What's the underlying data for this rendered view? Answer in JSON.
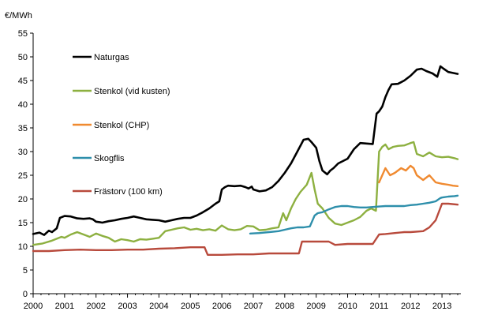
{
  "chart_data": {
    "type": "line",
    "ylabel": "€/MWh",
    "xlim": [
      2000,
      2013.6
    ],
    "ylim": [
      0,
      55
    ],
    "y_ticks": [
      0,
      5,
      10,
      15,
      20,
      25,
      30,
      35,
      40,
      45,
      50,
      55
    ],
    "x_ticks": [
      2000,
      2001,
      2002,
      2003,
      2004,
      2005,
      2006,
      2007,
      2008,
      2009,
      2010,
      2011,
      2012,
      2013
    ],
    "grid": false,
    "legend_position": "top-left",
    "series": [
      {
        "name": "Naturgas",
        "color": "#000000",
        "x": [
          2000.0,
          2000.2,
          2000.35,
          2000.5,
          2000.6,
          2000.75,
          2000.85,
          2001.0,
          2001.2,
          2001.4,
          2001.6,
          2001.8,
          2001.9,
          2002.0,
          2002.2,
          2002.4,
          2002.6,
          2002.8,
          2003.0,
          2003.2,
          2003.4,
          2003.6,
          2003.8,
          2004.0,
          2004.2,
          2004.4,
          2004.6,
          2004.8,
          2005.0,
          2005.2,
          2005.4,
          2005.6,
          2005.8,
          2005.92,
          2006.0,
          2006.1,
          2006.2,
          2006.4,
          2006.6,
          2006.75,
          2006.85,
          2006.95,
          2007.0,
          2007.2,
          2007.4,
          2007.6,
          2007.8,
          2008.0,
          2008.2,
          2008.4,
          2008.6,
          2008.75,
          2008.85,
          2009.0,
          2009.1,
          2009.2,
          2009.35,
          2009.45,
          2009.55,
          2009.7,
          2009.85,
          2010.0,
          2010.2,
          2010.4,
          2010.6,
          2010.8,
          2010.92,
          2011.0,
          2011.1,
          2011.2,
          2011.3,
          2011.4,
          2011.6,
          2011.8,
          2012.0,
          2012.2,
          2012.35,
          2012.5,
          2012.7,
          2012.85,
          2012.95,
          2013.05,
          2013.2,
          2013.35,
          2013.5
        ],
        "values": [
          12.6,
          12.9,
          12.4,
          13.3,
          13.0,
          13.8,
          16.0,
          16.4,
          16.3,
          15.9,
          15.8,
          15.9,
          15.7,
          15.2,
          15.0,
          15.3,
          15.5,
          15.8,
          16.0,
          16.3,
          16.0,
          15.7,
          15.6,
          15.5,
          15.2,
          15.5,
          15.8,
          16.0,
          16.0,
          16.5,
          17.2,
          18.0,
          19.0,
          19.5,
          22.0,
          22.5,
          22.8,
          22.7,
          22.8,
          22.5,
          22.2,
          22.6,
          22.0,
          21.6,
          21.8,
          22.5,
          23.8,
          25.5,
          27.5,
          30.0,
          32.5,
          32.7,
          32.0,
          30.8,
          28.0,
          26.0,
          25.2,
          26.0,
          26.5,
          27.5,
          28.0,
          28.5,
          30.5,
          31.8,
          31.7,
          31.6,
          38.0,
          38.5,
          39.5,
          41.5,
          43.0,
          44.2,
          44.3,
          45.0,
          46.0,
          47.3,
          47.5,
          47.0,
          46.5,
          45.8,
          48.0,
          47.5,
          46.8,
          46.6,
          46.4
        ]
      },
      {
        "name": "Stenkol (vid kusten)",
        "color": "#8db040",
        "x": [
          2000.0,
          2000.3,
          2000.6,
          2000.9,
          2001.0,
          2001.2,
          2001.4,
          2001.6,
          2001.8,
          2002.0,
          2002.2,
          2002.4,
          2002.6,
          2002.8,
          2003.0,
          2003.2,
          2003.4,
          2003.6,
          2003.8,
          2004.0,
          2004.2,
          2004.4,
          2004.6,
          2004.8,
          2005.0,
          2005.2,
          2005.4,
          2005.6,
          2005.8,
          2006.0,
          2006.2,
          2006.4,
          2006.6,
          2006.8,
          2007.0,
          2007.2,
          2007.4,
          2007.6,
          2007.8,
          2007.95,
          2008.05,
          2008.2,
          2008.35,
          2008.5,
          2008.7,
          2008.85,
          2008.95,
          2009.05,
          2009.2,
          2009.4,
          2009.6,
          2009.8,
          2010.0,
          2010.2,
          2010.4,
          2010.6,
          2010.75,
          2010.9,
          2011.0,
          2011.1,
          2011.2,
          2011.3,
          2011.45,
          2011.6,
          2011.8,
          2012.0,
          2012.1,
          2012.2,
          2012.4,
          2012.6,
          2012.8,
          2013.0,
          2013.2,
          2013.4,
          2013.5
        ],
        "values": [
          10.3,
          10.6,
          11.2,
          12.0,
          11.8,
          12.5,
          13.0,
          12.5,
          12.0,
          12.7,
          12.2,
          11.8,
          11.0,
          11.5,
          11.3,
          11.0,
          11.5,
          11.4,
          11.6,
          11.8,
          13.2,
          13.5,
          13.8,
          14.0,
          13.5,
          13.7,
          13.4,
          13.6,
          13.3,
          14.4,
          13.6,
          13.4,
          13.6,
          14.3,
          14.2,
          13.4,
          13.5,
          13.8,
          14.0,
          17.0,
          15.5,
          18.0,
          20.0,
          21.5,
          23.0,
          25.5,
          22.0,
          19.0,
          18.0,
          16.0,
          14.8,
          14.5,
          15.0,
          15.5,
          16.2,
          17.5,
          18.0,
          17.5,
          30.0,
          31.0,
          31.5,
          30.5,
          31.0,
          31.2,
          31.3,
          31.8,
          32.0,
          29.5,
          29.0,
          29.8,
          29.0,
          28.8,
          28.9,
          28.6,
          28.4
        ]
      },
      {
        "name": "Stenkol (CHP)",
        "color": "#f08a30",
        "x": [
          2011.0,
          2011.1,
          2011.2,
          2011.35,
          2011.5,
          2011.7,
          2011.85,
          2012.0,
          2012.1,
          2012.2,
          2012.4,
          2012.6,
          2012.8,
          2013.0,
          2013.2,
          2013.35,
          2013.5
        ],
        "values": [
          23.5,
          25.0,
          26.5,
          25.0,
          25.5,
          26.5,
          26.0,
          27.0,
          26.5,
          25.0,
          24.0,
          25.0,
          23.5,
          23.2,
          23.0,
          22.8,
          22.7
        ]
      },
      {
        "name": "Skogflis",
        "color": "#2e8fab",
        "x": [
          2006.9,
          2007.2,
          2007.5,
          2007.8,
          2008.0,
          2008.2,
          2008.4,
          2008.6,
          2008.8,
          2008.95,
          2009.05,
          2009.2,
          2009.4,
          2009.6,
          2009.8,
          2010.0,
          2010.2,
          2010.4,
          2010.6,
          2010.8,
          2011.0,
          2011.2,
          2011.4,
          2011.6,
          2011.8,
          2012.0,
          2012.2,
          2012.4,
          2012.6,
          2012.8,
          2012.95,
          2013.0,
          2013.2,
          2013.4,
          2013.5
        ],
        "values": [
          12.7,
          12.8,
          13.0,
          13.2,
          13.5,
          13.8,
          14.0,
          14.0,
          14.2,
          16.5,
          17.0,
          17.2,
          17.8,
          18.3,
          18.5,
          18.5,
          18.3,
          18.2,
          18.2,
          18.3,
          18.4,
          18.5,
          18.5,
          18.5,
          18.5,
          18.7,
          18.8,
          19.0,
          19.2,
          19.5,
          20.2,
          20.3,
          20.5,
          20.6,
          20.7
        ]
      },
      {
        "name": "Frästorv (100 km)",
        "color": "#b84a3c",
        "x": [
          2000.0,
          2000.5,
          2001.0,
          2001.5,
          2002.0,
          2002.5,
          2003.0,
          2003.5,
          2004.0,
          2004.5,
          2005.0,
          2005.45,
          2005.55,
          2006.0,
          2006.5,
          2007.0,
          2007.5,
          2008.0,
          2008.45,
          2008.55,
          2009.0,
          2009.4,
          2009.6,
          2010.0,
          2010.5,
          2010.8,
          2011.0,
          2011.2,
          2011.5,
          2011.8,
          2012.0,
          2012.4,
          2012.6,
          2012.8,
          2013.0,
          2013.2,
          2013.5
        ],
        "values": [
          9.0,
          9.0,
          9.2,
          9.3,
          9.2,
          9.2,
          9.3,
          9.3,
          9.5,
          9.6,
          9.8,
          9.8,
          8.2,
          8.2,
          8.3,
          8.3,
          8.5,
          8.5,
          8.5,
          11.0,
          11.0,
          11.0,
          10.3,
          10.5,
          10.5,
          10.5,
          12.5,
          12.6,
          12.8,
          13.0,
          13.0,
          13.2,
          14.0,
          15.5,
          19.0,
          19.0,
          18.8
        ]
      }
    ]
  }
}
